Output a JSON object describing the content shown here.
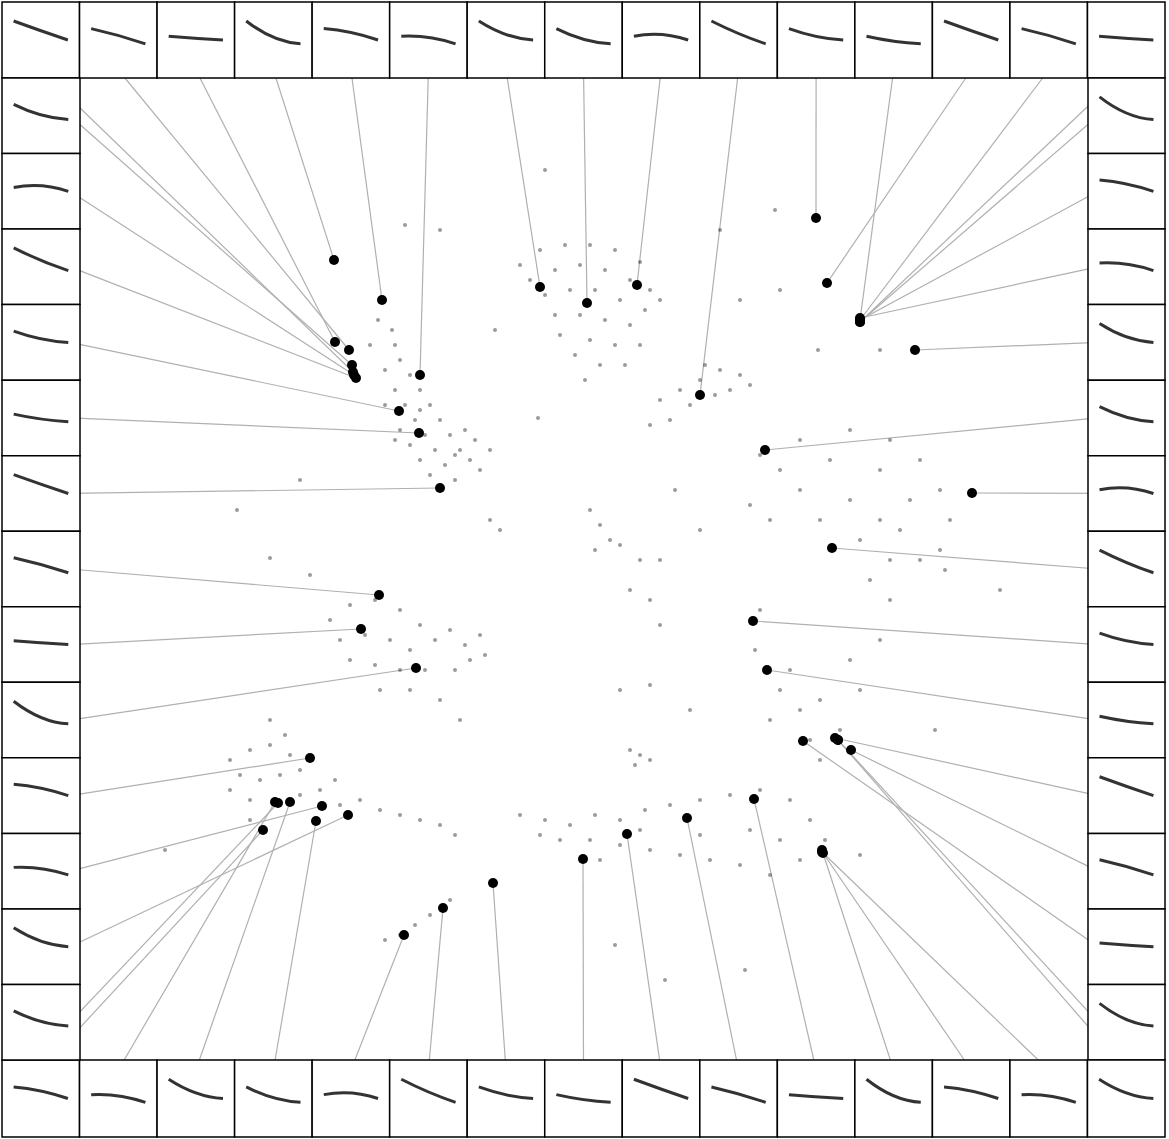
{
  "chart_data": {
    "type": "scatter",
    "xlim": [
      80,
      1088
    ],
    "ylim": [
      1060,
      78
    ],
    "tick_labels": false,
    "grid": false,
    "series": [
      {
        "color": "#222222",
        "marker": "point",
        "x": [
          385,
          378,
          392,
          370,
          395,
          400,
          385,
          410,
          395,
          420,
          405,
          430,
          385,
          415,
          440,
          400,
          425,
          450,
          410,
          435,
          460,
          420,
          445,
          470,
          430,
          455,
          440,
          480,
          490,
          465,
          475,
          395,
          420,
          455
        ],
        "values": [
          300,
          320,
          330,
          345,
          345,
          360,
          370,
          375,
          390,
          390,
          405,
          405,
          405,
          420,
          420,
          430,
          435,
          435,
          445,
          450,
          450,
          460,
          465,
          460,
          475,
          480,
          490,
          470,
          450,
          430,
          440,
          440,
          410,
          455
        ]
      },
      {
        "color": "#222222",
        "marker": "point",
        "x": [
          520,
          540,
          565,
          590,
          615,
          640,
          530,
          555,
          580,
          605,
          630,
          650,
          545,
          570,
          595,
          620,
          645,
          555,
          580,
          605,
          630,
          560,
          590,
          615,
          640,
          575,
          600,
          625,
          660,
          585,
          660,
          680,
          700,
          720,
          740,
          750,
          690,
          715,
          670,
          650,
          705,
          730
        ],
        "values": [
          265,
          250,
          245,
          245,
          250,
          262,
          280,
          270,
          265,
          270,
          280,
          290,
          295,
          290,
          290,
          300,
          310,
          315,
          315,
          320,
          325,
          335,
          340,
          345,
          345,
          355,
          365,
          365,
          300,
          380,
          400,
          390,
          380,
          370,
          375,
          385,
          405,
          395,
          420,
          425,
          365,
          390
        ]
      },
      {
        "color": "#222222",
        "marker": "point",
        "x": [
          630,
          660,
          700,
          750,
          800,
          850,
          880,
          890,
          890,
          880,
          860,
          840,
          820
        ],
        "values": [
          590,
          560,
          530,
          505,
          490,
          500,
          520,
          560,
          600,
          640,
          690,
          730,
          760
        ]
      },
      {
        "color": "#222222",
        "marker": "point",
        "x": [
          760,
          800,
          850,
          890,
          920,
          940,
          950,
          940,
          920,
          900,
          880,
          830,
          780,
          910,
          945
        ],
        "values": [
          455,
          440,
          430,
          440,
          460,
          490,
          520,
          550,
          560,
          530,
          470,
          460,
          470,
          500,
          570
        ]
      },
      {
        "color": "#222222",
        "marker": "point",
        "x": [
          770,
          820,
          860,
          870,
          760,
          755,
          780,
          800,
          770,
          820,
          850,
          790,
          810
        ],
        "values": [
          520,
          520,
          540,
          580,
          610,
          650,
          690,
          710,
          720,
          700,
          660,
          670,
          740
        ]
      },
      {
        "color": "#222222",
        "marker": "point",
        "x": [
          590,
          600,
          610,
          595,
          640,
          650,
          660,
          620
        ],
        "values": [
          510,
          525,
          540,
          550,
          560,
          600,
          625,
          545
        ]
      },
      {
        "color": "#222222",
        "marker": "point",
        "x": [
          330,
          350,
          375,
          400,
          420,
          340,
          365,
          390,
          410,
          435,
          350,
          375,
          400,
          425,
          380,
          410,
          440,
          460,
          450,
          465,
          480,
          470,
          485,
          455
        ],
        "values": [
          620,
          605,
          600,
          610,
          625,
          640,
          635,
          640,
          650,
          640,
          660,
          665,
          670,
          670,
          690,
          690,
          700,
          720,
          630,
          645,
          635,
          660,
          655,
          670
        ]
      },
      {
        "color": "#222222",
        "marker": "point",
        "x": [
          230,
          250,
          270,
          290,
          240,
          260,
          280,
          300,
          230,
          250,
          300,
          320,
          340,
          360,
          380,
          400,
          420,
          440,
          455,
          270,
          285,
          250,
          335
        ],
        "values": [
          760,
          750,
          745,
          755,
          775,
          780,
          775,
          770,
          790,
          800,
          795,
          790,
          805,
          800,
          810,
          815,
          820,
          825,
          835,
          720,
          735,
          820,
          780
        ]
      },
      {
        "color": "#222222",
        "marker": "point",
        "x": [
          385,
          400,
          415,
          430,
          450
        ],
        "values": [
          940,
          935,
          925,
          915,
          900
        ]
      },
      {
        "color": "#222222",
        "marker": "point",
        "x": [
          520,
          545,
          570,
          595,
          620,
          645,
          670,
          700,
          730,
          760,
          790,
          810,
          825,
          800,
          770,
          740,
          710,
          680,
          650,
          620,
          590,
          560,
          540,
          600,
          700,
          750,
          780,
          640
        ],
        "values": [
          815,
          820,
          825,
          815,
          820,
          810,
          805,
          800,
          795,
          790,
          800,
          820,
          840,
          860,
          875,
          865,
          860,
          855,
          850,
          845,
          840,
          840,
          835,
          860,
          835,
          830,
          840,
          830
        ]
      },
      {
        "color": "#222222",
        "marker": "point",
        "x": [
          630,
          640,
          650,
          635
        ],
        "values": [
          750,
          755,
          760,
          765
        ]
      },
      {
        "color": "#222222",
        "marker": "point",
        "x": [
          545,
          775,
          720,
          440,
          405,
          300,
          237,
          270,
          310,
          490,
          500,
          538,
          495,
          675,
          650,
          690,
          620,
          165,
          745,
          665,
          615,
          860,
          935,
          1000,
          880,
          740,
          780,
          818
        ],
        "values": [
          170,
          210,
          230,
          230,
          225,
          480,
          510,
          558,
          575,
          520,
          530,
          418,
          330,
          490,
          685,
          710,
          690,
          850,
          970,
          980,
          945,
          855,
          730,
          590,
          350,
          300,
          290,
          350
        ]
      },
      {
        "color": "#000000",
        "marker": "circle",
        "x": [
          353,
          349,
          335,
          334,
          382,
          420,
          540,
          587,
          637,
          700,
          816,
          860,
          827,
          860,
          860,
          860,
          860,
          860,
          915,
          765,
          972,
          832,
          753,
          767,
          835,
          851,
          803,
          838,
          263,
          275,
          290,
          316,
          404,
          443,
          493,
          583,
          627,
          687,
          754,
          822,
          823,
          822,
          838,
          352,
          354,
          356,
          399,
          419,
          440,
          379,
          361,
          416,
          310,
          322,
          348,
          278
        ],
        "values": [
          372,
          350,
          342,
          260,
          300,
          375,
          287,
          303,
          285,
          395,
          218,
          320,
          283,
          320,
          322,
          322,
          320,
          318,
          350,
          450,
          493,
          548,
          621,
          670,
          738,
          750,
          741,
          740,
          830,
          802,
          802,
          821,
          935,
          908,
          883,
          859,
          834,
          818,
          799,
          850,
          853,
          852,
          740,
          365,
          375,
          378,
          411,
          433,
          488,
          595,
          629,
          668,
          758,
          806,
          815,
          803
        ]
      }
    ]
  }
}
